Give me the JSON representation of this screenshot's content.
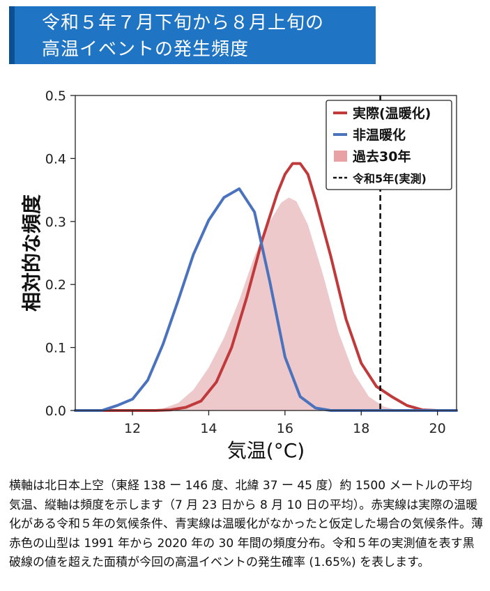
{
  "title": {
    "line1": "令和５年７月下旬から８月上旬の",
    "line2": "高温イベントの発生頻度"
  },
  "caption": "横軸は北日本上空（東経 138 ー 146 度、北緯 37 ー 45 度）約 1500 メートルの平均気温、縦軸は頻度を示します（7 月 23 日から 8 月 10 日の平均）。赤実線は実際の温暖化がある令和５年の気候条件、青実線は温暖化がなかったと仮定した場合の気候条件。薄赤色の山型は 1991 年から 2020 年の 30 年間の頻度分布。令和５年の実測値を表す黒破線の値を超えた面積が今回の高温イベントの発生確率 (1.65%) を表します。",
  "chart_data": {
    "type": "line",
    "xlabel": "気温(°C)",
    "ylabel": "相対的な頻度",
    "xlim": [
      10.5,
      20.5
    ],
    "ylim": [
      0,
      0.5
    ],
    "xticks": [
      12,
      14,
      16,
      18,
      20
    ],
    "yticks": [
      "0.0",
      "0.1",
      "0.2",
      "0.3",
      "0.4",
      "0.5"
    ],
    "grid": false,
    "legend_position": "top-right",
    "series": [
      {
        "name": "実際(温暖化)",
        "kind": "line",
        "color": "#c0393b",
        "x": [
          10.5,
          12.6,
          13.0,
          13.4,
          13.8,
          14.2,
          14.6,
          15.0,
          15.4,
          15.8,
          16.0,
          16.2,
          16.4,
          16.6,
          16.8,
          17.2,
          17.6,
          18.0,
          18.4,
          18.8,
          19.2,
          19.6,
          20.0,
          20.5
        ],
        "y": [
          0.0,
          0.0,
          0.001,
          0.005,
          0.015,
          0.045,
          0.1,
          0.18,
          0.27,
          0.345,
          0.375,
          0.392,
          0.392,
          0.375,
          0.335,
          0.245,
          0.145,
          0.075,
          0.038,
          0.022,
          0.008,
          0.001,
          0.0,
          0.0
        ]
      },
      {
        "name": "非温暖化",
        "kind": "line",
        "color": "#4b73bd",
        "x": [
          10.5,
          11.2,
          11.6,
          12.0,
          12.4,
          12.8,
          13.2,
          13.6,
          14.0,
          14.4,
          14.8,
          15.2,
          15.6,
          16.0,
          16.4,
          16.8,
          17.2,
          17.6,
          20.5
        ],
        "y": [
          0.0,
          0.0,
          0.008,
          0.018,
          0.048,
          0.105,
          0.175,
          0.248,
          0.302,
          0.338,
          0.352,
          0.315,
          0.205,
          0.085,
          0.022,
          0.004,
          0.0,
          0.0,
          0.0
        ]
      },
      {
        "name": "過去30年",
        "kind": "area",
        "color": "#e8a2a6",
        "x": [
          12.4,
          12.8,
          13.2,
          13.6,
          14.0,
          14.4,
          14.8,
          15.2,
          15.6,
          15.9,
          16.1,
          16.3,
          16.6,
          17.0,
          17.4,
          17.8,
          18.2,
          18.6,
          19.0
        ],
        "y": [
          0.0,
          0.003,
          0.012,
          0.033,
          0.068,
          0.115,
          0.175,
          0.245,
          0.3,
          0.33,
          0.338,
          0.332,
          0.295,
          0.215,
          0.125,
          0.06,
          0.022,
          0.006,
          0.0
        ]
      },
      {
        "name": "令和5年(実測)",
        "kind": "vline",
        "color": "#111111",
        "x": 18.5
      }
    ]
  }
}
